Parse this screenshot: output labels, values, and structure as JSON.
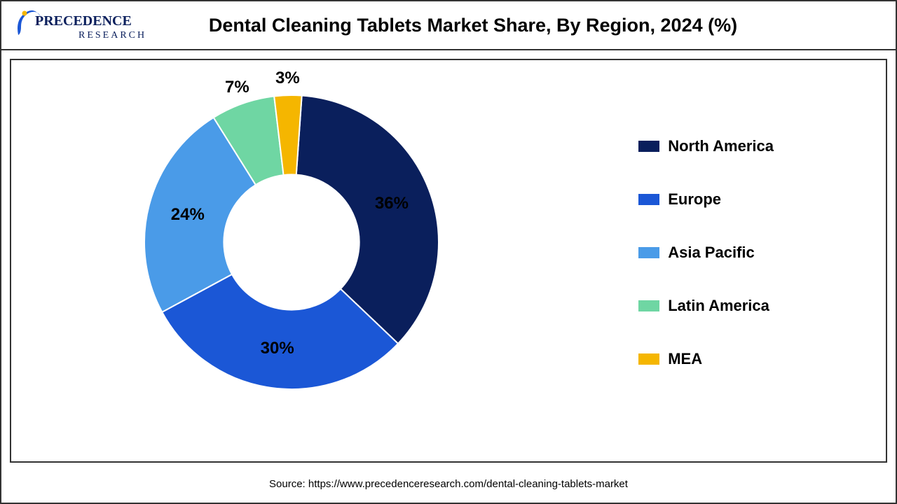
{
  "title": {
    "text": "Dental Cleaning Tablets Market Share, By Region, 2024 (%)",
    "fontsize": 27
  },
  "logo": {
    "brand_primary": "PRECEDENCE",
    "brand_secondary": "RESEARCH",
    "accent_color": "#1b57d6",
    "text_color": "#0a1f5c"
  },
  "chart": {
    "type": "donut",
    "inner_radius_ratio": 0.46,
    "background_color": "#ffffff",
    "label_fontsize": 24,
    "legend_fontsize": 22,
    "slices": [
      {
        "name": "North America",
        "value": 36,
        "label": "36%",
        "color": "#0a1f5c"
      },
      {
        "name": "Europe",
        "value": 30,
        "label": "30%",
        "color": "#1b57d6"
      },
      {
        "name": "Asia Pacific",
        "value": 24,
        "label": "24%",
        "color": "#4a9be8"
      },
      {
        "name": "Latin America",
        "value": 7,
        "label": "7%",
        "color": "#6fd6a3"
      },
      {
        "name": "MEA",
        "value": 3,
        "label": "3%",
        "color": "#f5b600"
      }
    ]
  },
  "source": {
    "text": "Source: https://www.precedenceresearch.com/dental-cleaning-tablets-market",
    "fontsize": 15
  }
}
